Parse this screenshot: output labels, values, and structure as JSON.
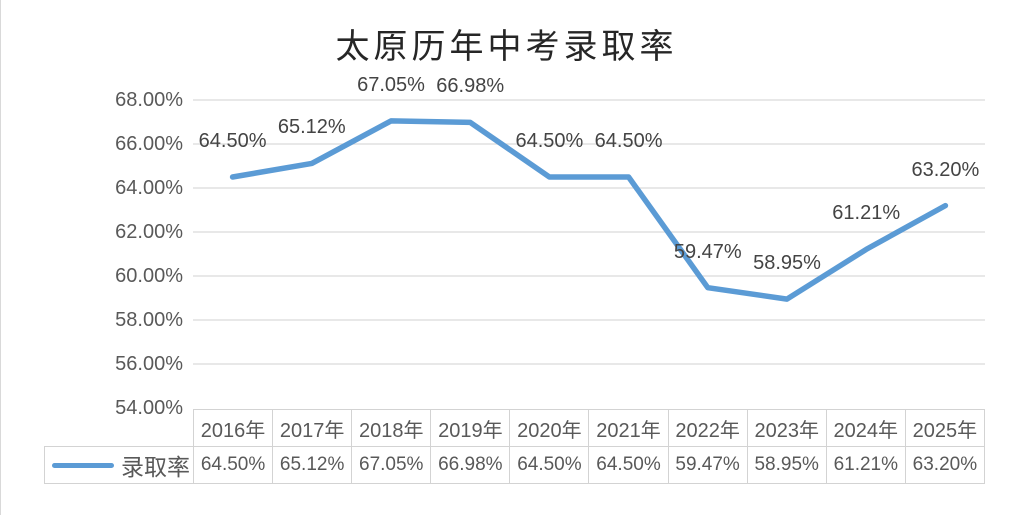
{
  "chart_data": {
    "type": "line",
    "title": "太原历年中考录取率",
    "categories": [
      "2016年",
      "2017年",
      "2018年",
      "2019年",
      "2020年",
      "2021年",
      "2022年",
      "2023年",
      "2024年",
      "2025年"
    ],
    "series": [
      {
        "name": "录取率",
        "values": [
          64.5,
          65.12,
          67.05,
          66.98,
          64.5,
          64.5,
          59.47,
          58.95,
          61.21,
          63.2
        ]
      }
    ],
    "data_labels": [
      "64.50%",
      "65.12%",
      "67.05%",
      "66.98%",
      "64.50%",
      "64.50%",
      "59.47%",
      "58.95%",
      "61.21%",
      "63.20%"
    ],
    "y_ticks": [
      "68.00%",
      "66.00%",
      "64.00%",
      "62.00%",
      "60.00%",
      "58.00%",
      "56.00%",
      "54.00%"
    ],
    "ylim": [
      54,
      68
    ],
    "xlabel": "",
    "ylabel": "",
    "grid": true,
    "legend_position": "bottom-table-left",
    "markers": false,
    "colors": {
      "line": "#5b9bd5",
      "gridline": "#d9d9d9",
      "axis_text": "#595959",
      "data_label_text": "#444444",
      "table_border": "#d3d3d3",
      "title_text": "#262626"
    }
  }
}
